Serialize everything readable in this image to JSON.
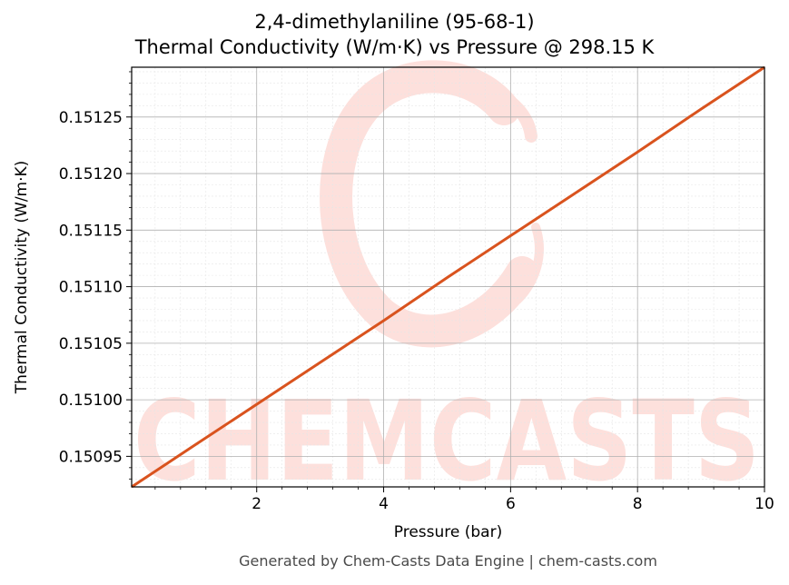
{
  "chart_data": {
    "type": "line",
    "title": "2,4-dimethylaniline (95-68-1)",
    "subtitle": "Thermal Conductivity (W/m·K) vs Pressure @ 298.15 K",
    "xlabel": "Pressure (bar)",
    "ylabel": "Thermal Conductivity (W/m·K)",
    "xlim": [
      0.03,
      10
    ],
    "ylim": [
      0.150923,
      0.151294
    ],
    "xticks": [
      2,
      4,
      6,
      8,
      10
    ],
    "xtick_labels": [
      "2",
      "4",
      "6",
      "8",
      "10"
    ],
    "yticks": [
      0.15095,
      0.151,
      0.15105,
      0.1511,
      0.15115,
      0.1512,
      0.15125
    ],
    "ytick_labels": [
      "0.15095",
      "0.15100",
      "0.15105",
      "0.15110",
      "0.15115",
      "0.15120",
      "0.15125"
    ],
    "grid": true,
    "line_color": "#d9531e",
    "series": [
      {
        "x": [
          0.03,
          1,
          2,
          3,
          4,
          5,
          6,
          7,
          8,
          9,
          10
        ],
        "values": [
          0.150923,
          0.150959,
          0.150996,
          0.151033,
          0.15107,
          0.151108,
          0.151145,
          0.151182,
          0.151219,
          0.151257,
          0.151294
        ]
      }
    ]
  },
  "watermark": {
    "text": "CHEMCASTS",
    "color": "#fde0dc"
  },
  "footer": "Generated by Chem-Casts Data Engine | chem-casts.com"
}
